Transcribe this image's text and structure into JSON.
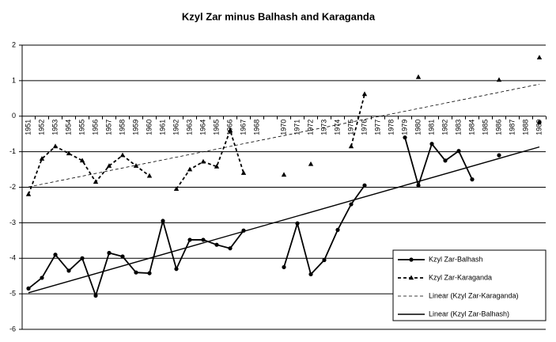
{
  "chart_data": {
    "type": "line",
    "title": "Kzyl Zar minus Balhash and Karaganda",
    "categories": [
      "1951",
      "1952",
      "1953",
      "1954",
      "1955",
      "1956",
      "1957",
      "1958",
      "1959",
      "1960",
      "1961",
      "1962",
      "1963",
      "1964",
      "1965",
      "1966",
      "1967",
      "1968",
      null,
      "1970",
      "1971",
      "1972",
      "1973",
      "1974",
      "1975",
      "1976",
      "1977",
      "1978",
      "1979",
      "1980",
      "1981",
      "1982",
      "1983",
      "1984",
      "1985",
      "1986",
      "1987",
      "1988",
      "1989"
    ],
    "series": [
      {
        "name": "Kzyl Zar-Balhash",
        "color": "#000000",
        "marker": "circle",
        "dash": "solid",
        "values": [
          -4.85,
          -4.55,
          -3.9,
          -4.35,
          -4.0,
          -5.05,
          -3.85,
          -3.95,
          -4.4,
          -4.42,
          -2.95,
          -4.3,
          -3.48,
          -3.48,
          -3.62,
          -3.72,
          -3.22,
          null,
          null,
          -4.25,
          -3.02,
          -4.45,
          -4.05,
          -3.2,
          -2.48,
          -1.95,
          null,
          null,
          -0.6,
          -1.95,
          -0.78,
          -1.25,
          -0.98,
          -1.78,
          null,
          -1.1,
          null,
          null,
          -0.18
        ]
      },
      {
        "name": "Kzyl Zar-Karaganda",
        "color": "#000000",
        "marker": "triangle",
        "dash": "dashed",
        "values": [
          -2.2,
          -1.2,
          -0.85,
          -1.05,
          -1.25,
          -1.85,
          -1.4,
          -1.1,
          -1.4,
          -1.68,
          null,
          -2.05,
          -1.5,
          -1.28,
          -1.42,
          -0.4,
          -1.6,
          null,
          null,
          -1.65,
          null,
          -1.35,
          null,
          null,
          -0.85,
          0.62,
          null,
          null,
          null,
          1.1,
          null,
          null,
          null,
          null,
          null,
          1.02,
          null,
          null,
          1.65
        ]
      }
    ],
    "trendlines": [
      {
        "name": "Linear (Kzyl Zar-Karaganda)",
        "series": 1,
        "dash": "dashed"
      },
      {
        "name": "Linear (Kzyl Zar-Balhash)",
        "series": 0,
        "dash": "solid"
      }
    ],
    "ylim": [
      -6,
      2
    ],
    "yticks": [
      -6,
      -5,
      -4,
      -3,
      -2,
      -1,
      0,
      1,
      2
    ],
    "grid": true,
    "legend": "bottom-right"
  }
}
